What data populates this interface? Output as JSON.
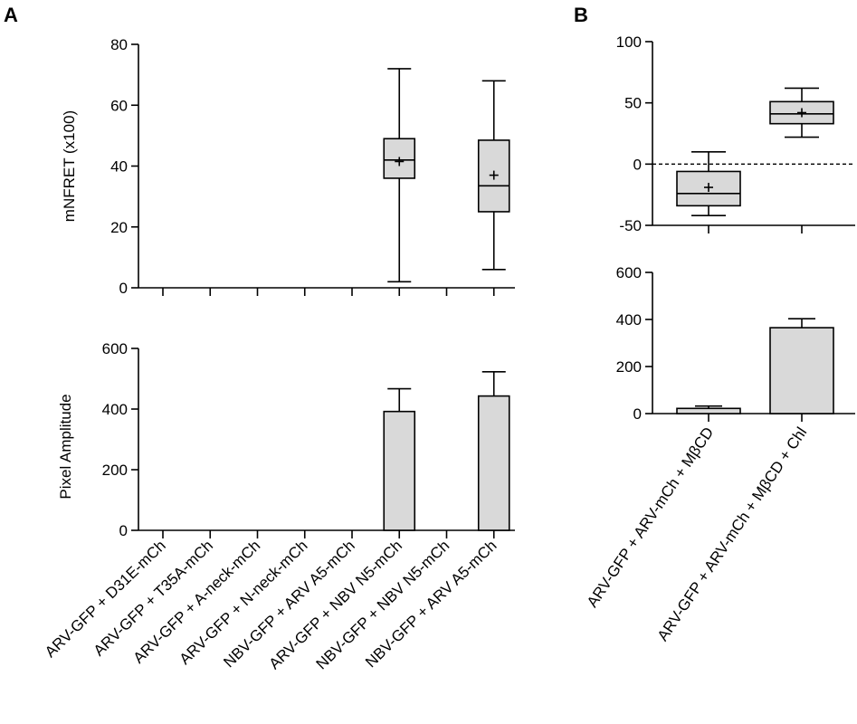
{
  "figure": {
    "panel_a_label": "A",
    "panel_b_label": "B"
  },
  "chart_data": [
    {
      "type": "box",
      "panel": "A",
      "ylabel": "mNFRET (x100)",
      "ylim": [
        0,
        80
      ],
      "yticks": [
        0,
        20,
        40,
        60,
        80
      ],
      "categories": [
        "ARV-GFP + D31E-mCh",
        "ARV-GFP + T35A-mCh",
        "ARV-GFP + A-neck-mCh",
        "ARV-GFP + N-neck-mCh",
        "NBV-GFP + ARV A5-mCh",
        "ARV-GFP + NBV N5-mCh",
        "NBV-GFP + NBV N5-mCh",
        "NBV-GFP + ARV A5-mCh"
      ],
      "boxes": [
        null,
        null,
        null,
        null,
        null,
        {
          "min": 2,
          "q1": 36,
          "median": 42,
          "q3": 49,
          "max": 72,
          "mean": 41.5
        },
        null,
        {
          "min": 6,
          "q1": 25,
          "median": 33.5,
          "q3": 48.5,
          "max": 68,
          "mean": 37
        }
      ],
      "grid": false
    },
    {
      "type": "bar",
      "panel": "A",
      "ylabel": "Pixel Amplitude",
      "ylim": [
        0,
        600
      ],
      "yticks": [
        0,
        200,
        400,
        600
      ],
      "categories": [
        "ARV-GFP + D31E-mCh",
        "ARV-GFP + T35A-mCh",
        "ARV-GFP + A-neck-mCh",
        "ARV-GFP + N-neck-mCh",
        "NBV-GFP + ARV A5-mCh",
        "ARV-GFP + NBV N5-mCh",
        "NBV-GFP + NBV N5-mCh",
        "NBV-GFP + ARV A5-mCh"
      ],
      "values": [
        null,
        null,
        null,
        null,
        null,
        392,
        null,
        443
      ],
      "errors": [
        null,
        null,
        null,
        null,
        null,
        75,
        null,
        80
      ],
      "grid": false
    },
    {
      "type": "box",
      "panel": "B",
      "ylim": [
        -50,
        100
      ],
      "yticks": [
        -50,
        0,
        50,
        100
      ],
      "reference_line": 0,
      "categories": [
        "ARV-GFP + ARV-mCh + MβCD",
        "ARV-GFP + ARV-mCh + MβCD + Chl"
      ],
      "boxes": [
        {
          "min": -42,
          "q1": -34,
          "median": -24,
          "q3": -6,
          "max": 10,
          "mean": -19
        },
        {
          "min": 22,
          "q1": 33,
          "median": 41,
          "q3": 51,
          "max": 62,
          "mean": 42
        }
      ],
      "grid": false
    },
    {
      "type": "bar",
      "panel": "B",
      "ylim": [
        0,
        600
      ],
      "yticks": [
        0,
        200,
        400,
        600
      ],
      "categories": [
        "ARV-GFP + ARV-mCh + MβCD",
        "ARV-GFP + ARV-mCh + MβCD + Chl"
      ],
      "values": [
        22,
        365
      ],
      "errors": [
        10,
        38
      ],
      "grid": false
    }
  ]
}
